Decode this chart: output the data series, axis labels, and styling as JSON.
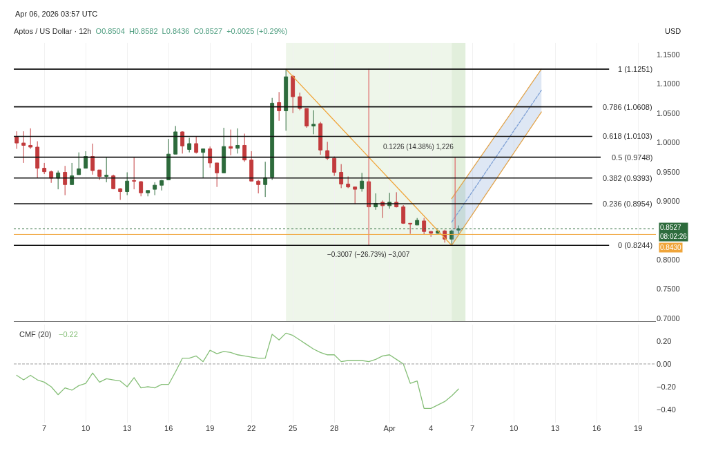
{
  "chart_data": [
    {
      "type": "candlestick",
      "title": "Aptos / US Dollar · 12h",
      "subtitle": "O0.8504  H0.8582  L0.8436  C0.8527  +0.0025 (+0.29%)",
      "ylabel": "USD",
      "annotations": [
        "Apr 06, 2026 03:57 UTC",
        {
          "text": "−0.3007 (−26.73%) −3,007",
          "x": "2026-03-30T12:00",
          "y": 0.8244
        },
        {
          "text": "0.1226 (14.38%) 1,226",
          "x": "2026-04-05T18:00",
          "y": 0.9748
        }
      ],
      "x": [
        "2026-03-05T00:00",
        "2026-03-05T12:00",
        "2026-03-06T00:00",
        "2026-03-06T12:00",
        "2026-03-07T00:00",
        "2026-03-07T12:00",
        "2026-03-08T00:00",
        "2026-03-08T12:00",
        "2026-03-09T00:00",
        "2026-03-09T12:00",
        "2026-03-10T00:00",
        "2026-03-10T12:00",
        "2026-03-11T00:00",
        "2026-03-11T12:00",
        "2026-03-12T00:00",
        "2026-03-12T12:00",
        "2026-03-13T00:00",
        "2026-03-13T12:00",
        "2026-03-14T00:00",
        "2026-03-14T12:00",
        "2026-03-15T00:00",
        "2026-03-15T12:00",
        "2026-03-16T00:00",
        "2026-03-16T12:00",
        "2026-03-17T00:00",
        "2026-03-17T12:00",
        "2026-03-18T00:00",
        "2026-03-18T12:00",
        "2026-03-19T00:00",
        "2026-03-19T12:00",
        "2026-03-20T00:00",
        "2026-03-20T12:00",
        "2026-03-21T00:00",
        "2026-03-21T12:00",
        "2026-03-22T00:00",
        "2026-03-22T12:00",
        "2026-03-23T00:00",
        "2026-03-23T12:00",
        "2026-03-24T00:00",
        "2026-03-24T12:00",
        "2026-03-25T00:00",
        "2026-03-25T12:00",
        "2026-03-26T00:00",
        "2026-03-26T12:00",
        "2026-03-27T00:00",
        "2026-03-27T12:00",
        "2026-03-28T00:00",
        "2026-03-28T12:00",
        "2026-03-29T00:00",
        "2026-03-29T12:00",
        "2026-03-30T00:00",
        "2026-03-30T12:00",
        "2026-03-31T00:00",
        "2026-03-31T12:00",
        "2026-04-01T00:00",
        "2026-04-01T12:00",
        "2026-04-02T00:00",
        "2026-04-02T12:00",
        "2026-04-03T00:00",
        "2026-04-03T12:00",
        "2026-04-04T00:00",
        "2026-04-04T12:00",
        "2026-04-05T00:00",
        "2026-04-05T12:00",
        "2026-04-06T00:00"
      ],
      "ohlc": [
        [
          1.009,
          1.019,
          0.989,
          0.999
        ],
        [
          0.999,
          1.019,
          0.965,
          0.995
        ],
        [
          0.995,
          1.024,
          0.989,
          0.992
        ],
        [
          0.992,
          1.002,
          0.94,
          0.956
        ],
        [
          0.956,
          0.965,
          0.946,
          0.95
        ],
        [
          0.95,
          0.952,
          0.931,
          0.939
        ],
        [
          0.939,
          0.952,
          0.92,
          0.948
        ],
        [
          0.949,
          0.96,
          0.91,
          0.928
        ],
        [
          0.928,
          0.965,
          0.928,
          0.943
        ],
        [
          0.945,
          0.983,
          0.945,
          0.955
        ],
        [
          0.956,
          0.985,
          0.956,
          0.976
        ],
        [
          0.976,
          0.998,
          0.945,
          0.952
        ],
        [
          0.953,
          0.953,
          0.936,
          0.942
        ],
        [
          0.942,
          0.975,
          0.932,
          0.944
        ],
        [
          0.943,
          0.945,
          0.92,
          0.921
        ],
        [
          0.921,
          0.922,
          0.902,
          0.916
        ],
        [
          0.916,
          0.949,
          0.91,
          0.934
        ],
        [
          0.935,
          0.975,
          0.92,
          0.934
        ],
        [
          0.933,
          0.934,
          0.908,
          0.914
        ],
        [
          0.914,
          0.918,
          0.908,
          0.918
        ],
        [
          0.92,
          0.932,
          0.91,
          0.927
        ],
        [
          0.927,
          0.936,
          0.918,
          0.935
        ],
        [
          0.936,
          1.006,
          0.936,
          0.98
        ],
        [
          0.98,
          1.028,
          0.98,
          1.018
        ],
        [
          1.018,
          1.019,
          0.981,
          0.994
        ],
        [
          0.988,
          1.008,
          0.983,
          0.998
        ],
        [
          0.998,
          1.01,
          0.981,
          0.983
        ],
        [
          0.983,
          0.989,
          0.94,
          0.989
        ],
        [
          0.989,
          0.993,
          0.957,
          0.965
        ],
        [
          0.965,
          0.965,
          0.924,
          0.948
        ],
        [
          0.948,
          1.025,
          0.948,
          0.993
        ],
        [
          0.993,
          1.022,
          0.978,
          0.99
        ],
        [
          0.99,
          1.024,
          0.981,
          0.995
        ],
        [
          0.995,
          1.015,
          0.967,
          0.97
        ],
        [
          0.97,
          0.985,
          0.934,
          0.934
        ],
        [
          0.934,
          0.936,
          0.913,
          0.928
        ],
        [
          0.928,
          0.967,
          0.907,
          0.94
        ],
        [
          0.941,
          1.076,
          0.936,
          1.067
        ],
        [
          1.068,
          1.086,
          1.037,
          1.054
        ],
        [
          1.054,
          1.1251,
          1.02,
          1.112
        ],
        [
          1.113,
          1.115,
          1.05,
          1.078
        ],
        [
          1.078,
          1.085,
          1.055,
          1.058
        ],
        [
          1.058,
          1.058,
          1.025,
          1.028
        ],
        [
          1.028,
          1.055,
          1.014,
          1.031
        ],
        [
          1.032,
          1.035,
          0.979,
          0.987
        ],
        [
          0.986,
          1.001,
          0.97,
          0.973
        ],
        [
          0.973,
          0.976,
          0.943,
          0.949
        ],
        [
          0.949,
          0.963,
          0.922,
          0.929
        ],
        [
          0.929,
          0.942,
          0.922,
          0.924
        ],
        [
          0.924,
          0.924,
          0.895,
          0.92
        ],
        [
          0.921,
          0.948,
          0.916,
          0.934
        ],
        [
          0.933,
          0.935,
          0.89,
          0.89
        ],
        [
          0.89,
          0.913,
          0.885,
          0.896
        ],
        [
          0.898,
          0.901,
          0.871,
          0.892
        ],
        [
          0.892,
          0.914,
          0.887,
          0.898
        ],
        [
          0.898,
          0.915,
          0.889,
          0.89
        ],
        [
          0.89,
          0.893,
          0.861,
          0.862
        ],
        [
          0.862,
          0.862,
          0.844,
          0.861
        ],
        [
          0.859,
          0.871,
          0.859,
          0.867
        ],
        [
          0.866,
          0.871,
          0.843,
          0.848
        ],
        [
          0.848,
          0.849,
          0.839,
          0.845
        ],
        [
          0.845,
          0.85,
          0.844,
          0.849
        ],
        [
          0.849,
          0.851,
          0.829,
          0.835
        ],
        [
          0.835,
          0.851,
          0.8244,
          0.849
        ],
        [
          0.8504,
          0.8582,
          0.8436,
          0.8527
        ]
      ],
      "colors": [
        "#c23b3d",
        "#c23b3d",
        "#c23b3d",
        "#c23b3d",
        "#c23b3d",
        "#c23b3d",
        "#2d6b3c",
        "#c23b3d",
        "#2d6b3c",
        "#2d6b3c",
        "#2d6b3c",
        "#c23b3d",
        "#c23b3d",
        "#2d6b3c",
        "#c23b3d",
        "#c23b3d",
        "#2d6b3c",
        "#c23b3d",
        "#c23b3d",
        "#2d6b3c",
        "#2d6b3c",
        "#2d6b3c",
        "#2d6b3c",
        "#2d6b3c",
        "#c23b3d",
        "#2d6b3c",
        "#c23b3d",
        "#2d6b3c",
        "#c23b3d",
        "#c23b3d",
        "#2d6b3c",
        "#c23b3d",
        "#2d6b3c",
        "#c23b3d",
        "#c23b3d",
        "#c23b3d",
        "#2d6b3c",
        "#2d6b3c",
        "#c23b3d",
        "#2d6b3c",
        "#c23b3d",
        "#c23b3d",
        "#c23b3d",
        "#2d6b3c",
        "#c23b3d",
        "#c23b3d",
        "#c23b3d",
        "#c23b3d",
        "#c23b3d",
        "#c23b3d",
        "#2d6b3c",
        "#c23b3d",
        "#2d6b3c",
        "#c23b3d",
        "#2d6b3c",
        "#c23b3d",
        "#c23b3d",
        "#c23b3d",
        "#2d6b3c",
        "#c23b3d",
        "#c23b3d",
        "#2d6b3c",
        "#c23b3d",
        "#2d6b3c",
        "#2d6b3c"
      ],
      "series": [
        {
          "type": "line",
          "color": "#f0a53a",
          "x": [
            "2026-03-24T12:00",
            "2026-04-05T12:00"
          ],
          "values": [
            1.1251,
            0.8244
          ]
        },
        {
          "type": "line",
          "color": "#f0a53a",
          "x": [
            "2026-04-05T12:00",
            "2026-04-12T00:00"
          ],
          "values": [
            0.8244,
            1.052
          ]
        },
        {
          "type": "line",
          "color": "#f0a53a",
          "x": [
            "2026-04-05T12:00",
            "2026-04-12T00:00"
          ],
          "values": [
            0.904,
            1.125
          ]
        },
        {
          "type": "line",
          "color": "#7d9fd4",
          "line_style": "dashed",
          "x": [
            "2026-04-05T12:00",
            "2026-04-12T00:00"
          ],
          "values": [
            0.864,
            1.089
          ],
          "lower": [
            0.8244,
            1.052
          ],
          "upper": [
            0.904,
            1.125
          ]
        },
        {
          "type": "line",
          "color": "#e07070",
          "x": [
            "2026-03-30T12:00",
            "2026-03-30T12:00"
          ],
          "values": [
            1.1251,
            0.8244
          ]
        },
        {
          "type": "line",
          "color": "#e07070",
          "x": [
            "2026-04-05T18:00",
            "2026-04-05T18:00"
          ],
          "values": [
            0.8527,
            0.9748
          ]
        }
      ],
      "ref_lines": [
        {
          "axis": "y",
          "value": 1.1251,
          "label": "1 (1.1251)"
        },
        {
          "axis": "y",
          "value": 1.0608,
          "label": "0.786 (1.0608)"
        },
        {
          "axis": "y",
          "value": 1.0103,
          "label": "0.618 (1.0103)"
        },
        {
          "axis": "y",
          "value": 0.9748,
          "label": "0.5 (0.9748)"
        },
        {
          "axis": "y",
          "value": 0.9393,
          "label": "0.382 (0.9393)"
        },
        {
          "axis": "y",
          "value": 0.8954,
          "label": "0.236 (0.8954)"
        },
        {
          "axis": "y",
          "value": 0.8244,
          "label": "0 (0.8244)"
        },
        {
          "axis": "y",
          "value": 0.8527,
          "label": "0.8527\n08:02:26",
          "color": "#2d6b3c",
          "line_style": "dotted"
        },
        {
          "axis": "y",
          "value": 0.843,
          "label": "0.8430",
          "color": "#f0a53a",
          "line_style": "solid"
        }
      ],
      "bands": [
        {
          "axis": "x",
          "from": "2026-03-24T12:00",
          "to": "2026-04-05T12:00",
          "color": "#eef6ea"
        },
        {
          "axis": "x",
          "from": "2026-04-05T12:00",
          "to": "2026-04-06T12:00",
          "color": "#e2efdc"
        }
      ],
      "xlim": [
        "2026-03-04T19:00",
        "2026-04-20T07:00"
      ],
      "xticks": [
        {
          "value": "2026-03-07",
          "label": null
        },
        {
          "value": "2026-03-10",
          "label": null
        },
        {
          "value": "2026-03-13",
          "label": null
        },
        {
          "value": "2026-03-16",
          "label": null
        },
        {
          "value": "2026-03-19",
          "label": null
        },
        {
          "value": "2026-03-22",
          "label": null
        },
        {
          "value": "2026-03-25",
          "label": null
        },
        {
          "value": "2026-03-28",
          "label": null
        },
        {
          "value": "2026-04-01",
          "label": null
        },
        {
          "value": "2026-04-04",
          "label": null
        },
        {
          "value": "2026-04-07",
          "label": null
        },
        {
          "value": "2026-04-10",
          "label": null
        },
        {
          "value": "2026-04-13",
          "label": null
        },
        {
          "value": "2026-04-16",
          "label": null
        },
        {
          "value": "2026-04-19",
          "label": null
        }
      ],
      "ylim": [
        0.695,
        1.17
      ],
      "yticks": [
        {
          "value": 0.7,
          "label": "0.7000"
        },
        {
          "value": 0.75,
          "label": "0.7500"
        },
        {
          "value": 0.8,
          "label": "0.8000"
        },
        {
          "value": 0.9,
          "label": "0.9000"
        },
        {
          "value": 0.95,
          "label": "0.9500"
        },
        {
          "value": 1.0,
          "label": "1.0000"
        },
        {
          "value": 1.05,
          "label": "1.0500"
        },
        {
          "value": 1.1,
          "label": "1.1000"
        },
        {
          "value": 1.15,
          "label": "1.1500"
        }
      ],
      "grid": "x",
      "tick_labels": "y"
    },
    {
      "type": "line",
      "title": "CMF (20)",
      "annotations": [
        "−0.22"
      ],
      "x": [
        "2026-03-05T00:00",
        "2026-03-05T12:00",
        "2026-03-06T00:00",
        "2026-03-06T12:00",
        "2026-03-07T00:00",
        "2026-03-07T12:00",
        "2026-03-08T00:00",
        "2026-03-08T12:00",
        "2026-03-09T00:00",
        "2026-03-09T12:00",
        "2026-03-10T00:00",
        "2026-03-10T12:00",
        "2026-03-11T00:00",
        "2026-03-11T12:00",
        "2026-03-12T00:00",
        "2026-03-12T12:00",
        "2026-03-13T00:00",
        "2026-03-13T12:00",
        "2026-03-14T00:00",
        "2026-03-14T12:00",
        "2026-03-15T00:00",
        "2026-03-15T12:00",
        "2026-03-16T00:00",
        "2026-03-16T12:00",
        "2026-03-17T00:00",
        "2026-03-17T12:00",
        "2026-03-18T00:00",
        "2026-03-18T12:00",
        "2026-03-19T00:00",
        "2026-03-19T12:00",
        "2026-03-20T00:00",
        "2026-03-20T12:00",
        "2026-03-21T00:00",
        "2026-03-21T12:00",
        "2026-03-22T00:00",
        "2026-03-22T12:00",
        "2026-03-23T00:00",
        "2026-03-23T12:00",
        "2026-03-24T00:00",
        "2026-03-24T12:00",
        "2026-03-25T00:00",
        "2026-03-25T12:00",
        "2026-03-26T00:00",
        "2026-03-26T12:00",
        "2026-03-27T00:00",
        "2026-03-27T12:00",
        "2026-03-28T00:00",
        "2026-03-28T12:00",
        "2026-03-29T00:00",
        "2026-03-29T12:00",
        "2026-03-30T00:00",
        "2026-03-30T12:00",
        "2026-03-31T00:00",
        "2026-03-31T12:00",
        "2026-04-01T00:00",
        "2026-04-01T12:00",
        "2026-04-02T00:00",
        "2026-04-02T12:00",
        "2026-04-03T00:00",
        "2026-04-03T12:00",
        "2026-04-04T00:00",
        "2026-04-04T12:00",
        "2026-04-05T00:00",
        "2026-04-05T12:00",
        "2026-04-06T00:00"
      ],
      "series": [
        {
          "color": "#86bf78",
          "values": [
            -0.1,
            -0.14,
            -0.1,
            -0.14,
            -0.16,
            -0.2,
            -0.27,
            -0.21,
            -0.23,
            -0.19,
            -0.17,
            -0.08,
            -0.16,
            -0.13,
            -0.14,
            -0.15,
            -0.2,
            -0.12,
            -0.21,
            -0.2,
            -0.21,
            -0.18,
            -0.18,
            -0.07,
            0.05,
            0.05,
            0.07,
            0.02,
            0.12,
            0.09,
            0.11,
            0.1,
            0.08,
            0.07,
            0.06,
            0.05,
            0.05,
            0.26,
            0.21,
            0.27,
            0.25,
            0.21,
            0.17,
            0.13,
            0.1,
            0.08,
            0.08,
            0.02,
            0.03,
            0.03,
            0.03,
            0.02,
            0.04,
            0.07,
            0.08,
            0.04,
            0.0,
            -0.17,
            -0.15,
            -0.39,
            -0.39,
            -0.36,
            -0.33,
            -0.28,
            -0.22
          ]
        }
      ],
      "ref_lines": [
        {
          "axis": "y",
          "value": 0,
          "color": "#9e9e9e",
          "line_style": "dashed"
        }
      ],
      "xlim": [
        "2026-03-04T19:00",
        "2026-04-20T07:00"
      ],
      "xticks": [
        {
          "value": "2026-03-07",
          "label": "7"
        },
        {
          "value": "2026-03-10",
          "label": "10"
        },
        {
          "value": "2026-03-13",
          "label": "13"
        },
        {
          "value": "2026-03-16",
          "label": "16"
        },
        {
          "value": "2026-03-19",
          "label": "19"
        },
        {
          "value": "2026-03-22",
          "label": "22"
        },
        {
          "value": "2026-03-25",
          "label": "25"
        },
        {
          "value": "2026-03-28",
          "label": "28"
        },
        {
          "value": "2026-04-01",
          "label": "Apr"
        },
        {
          "value": "2026-04-04",
          "label": "4"
        },
        {
          "value": "2026-04-07",
          "label": "7"
        },
        {
          "value": "2026-04-10",
          "label": "10"
        },
        {
          "value": "2026-04-13",
          "label": "13"
        },
        {
          "value": "2026-04-16",
          "label": "16"
        },
        {
          "value": "2026-04-19",
          "label": "19"
        }
      ],
      "ylim": [
        -0.515,
        0.345
      ],
      "yticks": [
        {
          "value": 0.2,
          "label": "0.20"
        },
        {
          "value": 0,
          "label": "0.00"
        },
        {
          "value": -0.2,
          "label": "−0.20"
        },
        {
          "value": -0.4,
          "label": "−0.40"
        }
      ],
      "grid": "x",
      "marker": "none"
    }
  ]
}
